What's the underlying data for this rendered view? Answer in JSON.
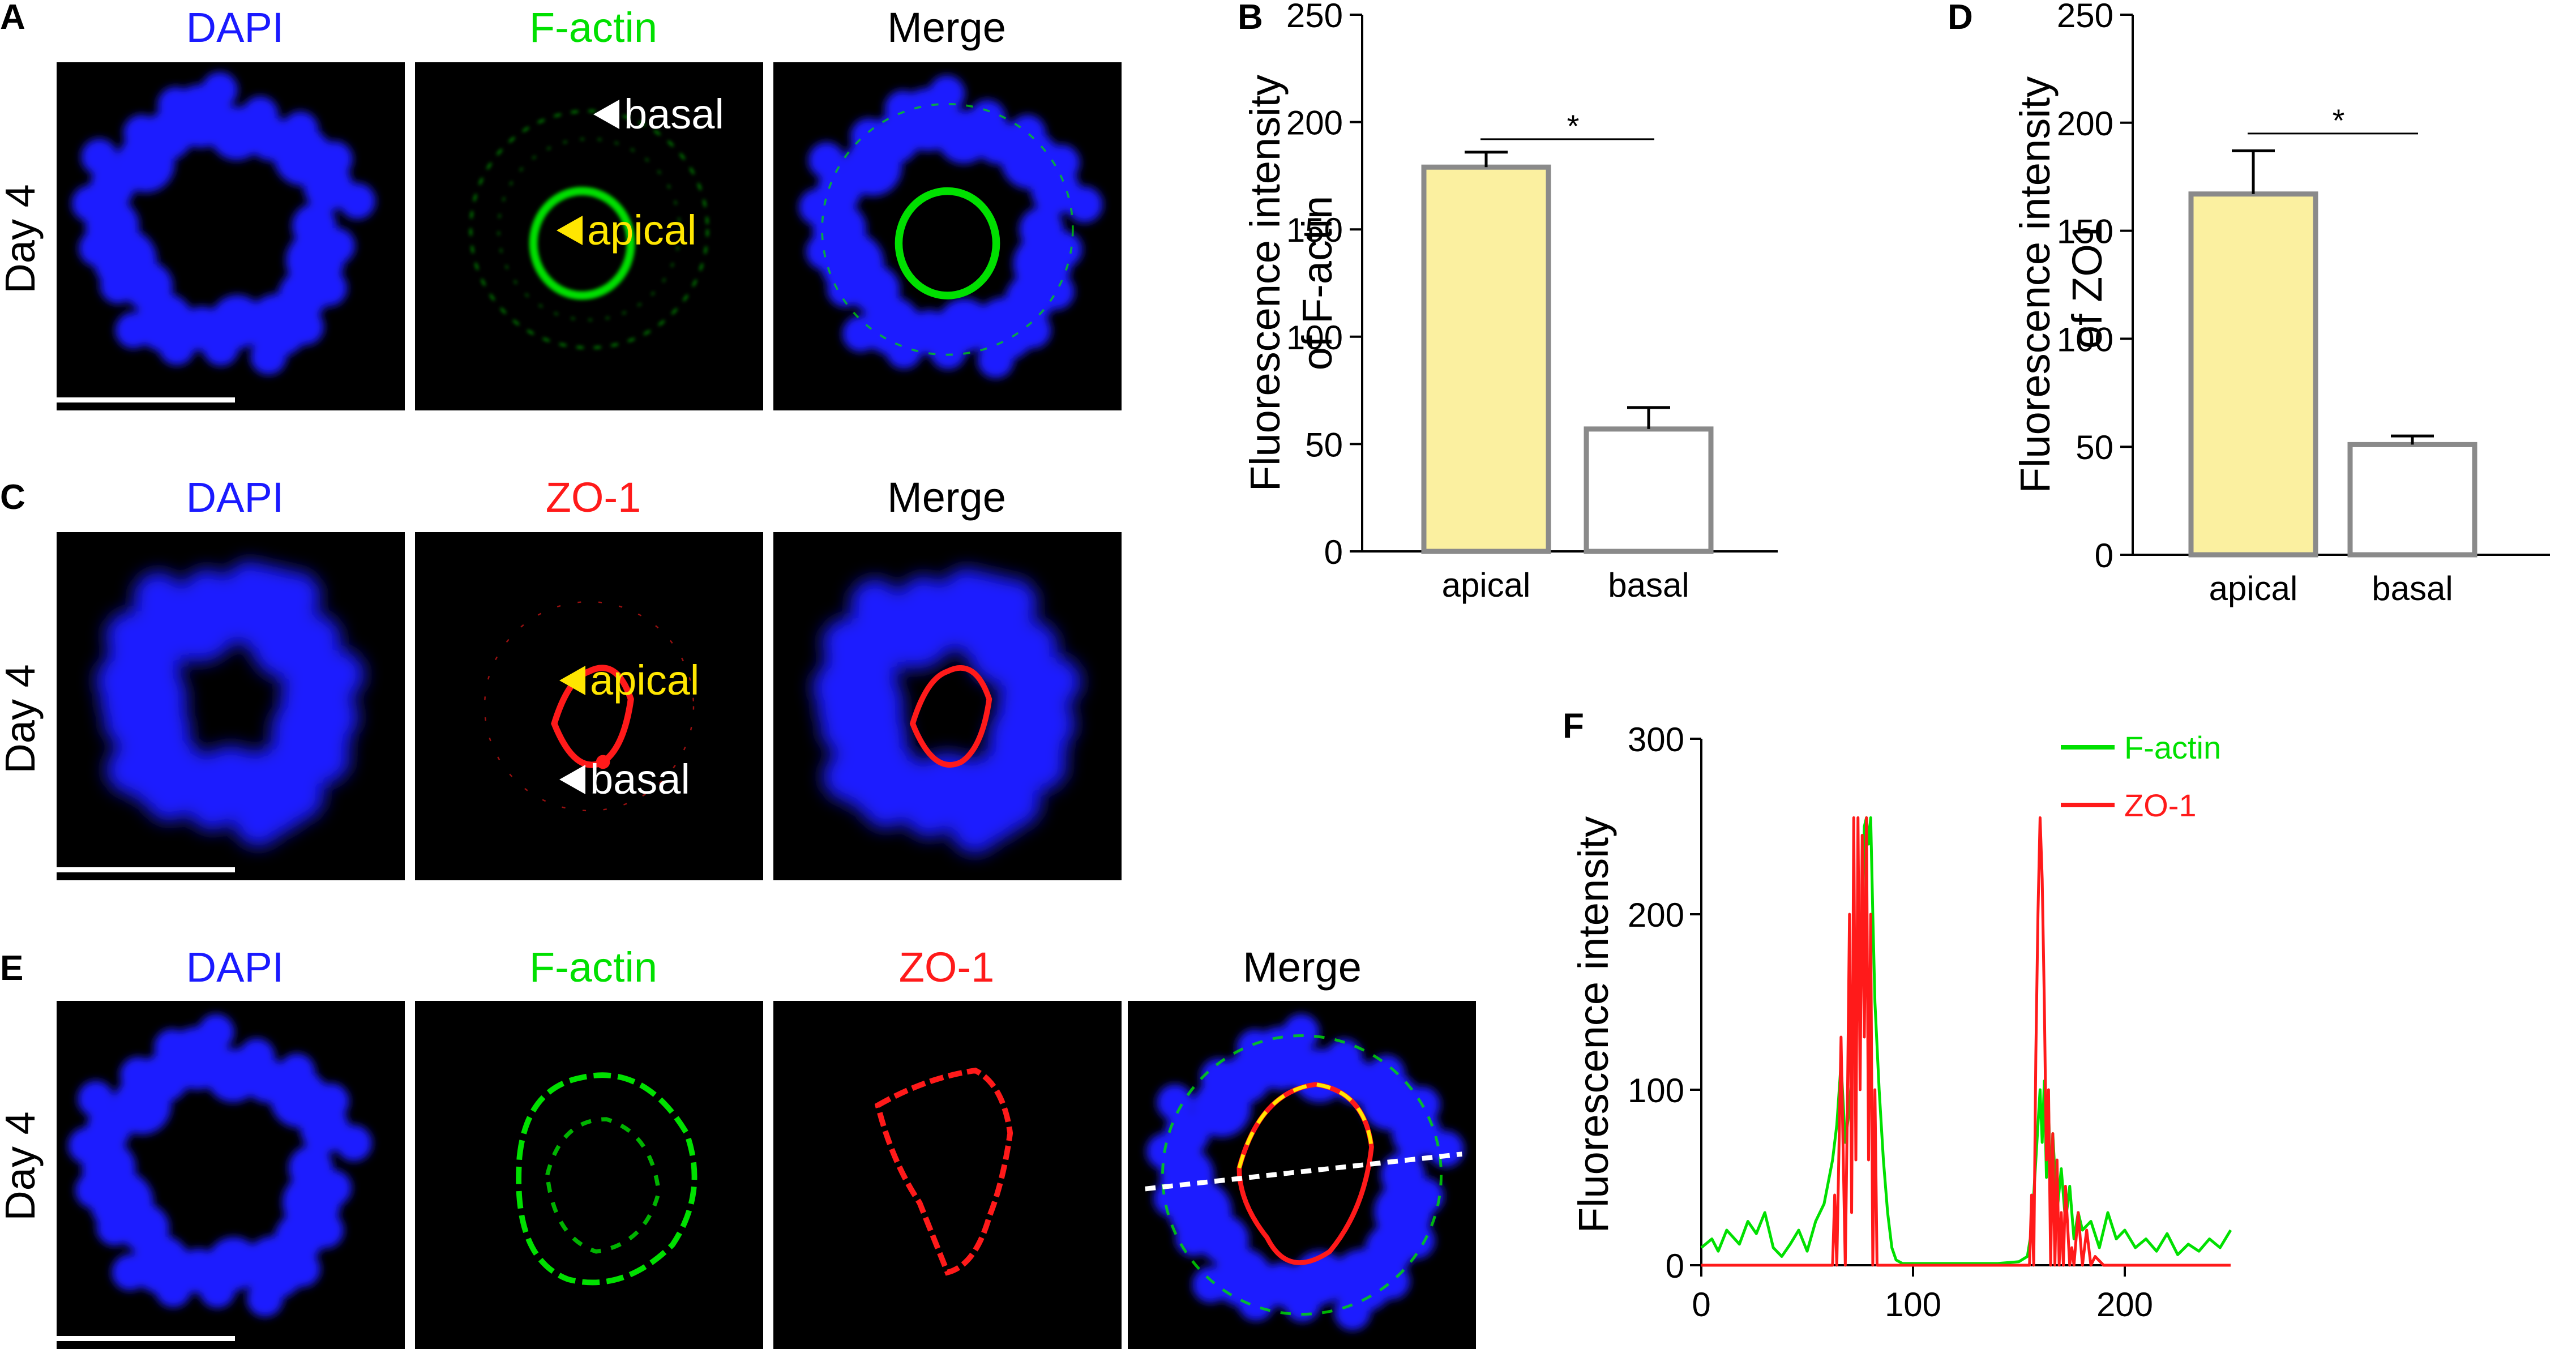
{
  "panel_letters": {
    "a": "A",
    "b": "B",
    "c": "C",
    "d": "D",
    "e": "E",
    "f": "F"
  },
  "channels": {
    "dapi": "DAPI",
    "factin": "F-actin",
    "zo1": "ZO-1",
    "merge": "Merge"
  },
  "row_label": "Day 4",
  "annotations": {
    "basal": "basal",
    "apical": "apical"
  },
  "colors": {
    "dapi": "#1a1aff",
    "factin": "#00e000",
    "zo1": "#ff1a1a",
    "apical_arrow": "#ffe600",
    "basal_arrow": "#ffffff",
    "bar_apical_fill": "#fbf0a0",
    "bar_basal_fill": "#ffffff",
    "bar_stroke": "#8a8a8a"
  },
  "chart_data": [
    {
      "panel": "B",
      "type": "bar",
      "categories": [
        "apical",
        "basal"
      ],
      "values": [
        179,
        57
      ],
      "errors": [
        7,
        10
      ],
      "ylabel": [
        "Fluorescence intensity",
        "of F-actin"
      ],
      "ylim": [
        0,
        250
      ],
      "yticks": [
        "0",
        "50",
        "100",
        "150",
        "200",
        "250"
      ],
      "significance": "*"
    },
    {
      "panel": "D",
      "type": "bar",
      "categories": [
        "apical",
        "basal"
      ],
      "values": [
        167,
        51
      ],
      "errors": [
        20,
        4
      ],
      "ylabel": [
        "Fluorescence intensity",
        "of ZO1"
      ],
      "ylim": [
        0,
        250
      ],
      "yticks": [
        "0",
        "50",
        "100",
        "150",
        "200",
        "250"
      ],
      "significance": "*"
    },
    {
      "panel": "F",
      "type": "line",
      "ylabel": "Fluorescence intensity",
      "xlim": [
        0,
        250
      ],
      "ylim": [
        0,
        300
      ],
      "xticks": [
        "0",
        "100",
        "200"
      ],
      "yticks": [
        "0",
        "100",
        "200",
        "300"
      ],
      "legend": "top-right",
      "series": [
        {
          "name": "F-actin",
          "color": "#00e000",
          "x": [
            0,
            5,
            8,
            12,
            18,
            22,
            26,
            30,
            34,
            38,
            42,
            46,
            50,
            54,
            58,
            62,
            64,
            66,
            68,
            70,
            72,
            74,
            76,
            77,
            78,
            79,
            80,
            81,
            82,
            84,
            86,
            88,
            90,
            92,
            95,
            100,
            110,
            120,
            130,
            140,
            150,
            154,
            156,
            158,
            160,
            161,
            162,
            163,
            164,
            165,
            166,
            168,
            170,
            172,
            174,
            176,
            178,
            180,
            184,
            188,
            192,
            196,
            200,
            205,
            210,
            215,
            220,
            225,
            230,
            235,
            240,
            245,
            250
          ],
          "y": [
            10,
            15,
            8,
            20,
            12,
            25,
            18,
            30,
            10,
            5,
            12,
            20,
            8,
            25,
            35,
            60,
            80,
            115,
            70,
            90,
            130,
            160,
            200,
            250,
            255,
            240,
            255,
            200,
            150,
            100,
            60,
            30,
            10,
            3,
            1,
            1,
            1,
            1,
            1,
            1,
            2,
            5,
            20,
            60,
            100,
            70,
            105,
            50,
            90,
            40,
            75,
            30,
            55,
            25,
            45,
            15,
            30,
            20,
            25,
            10,
            30,
            15,
            20,
            10,
            15,
            8,
            18,
            6,
            12,
            8,
            15,
            10,
            20
          ]
        },
        {
          "name": "ZO-1",
          "color": "#ff1a1a",
          "x": [
            0,
            60,
            62,
            63,
            64,
            66,
            68,
            69,
            70,
            71,
            72,
            73,
            74,
            75,
            76,
            77,
            78,
            79,
            80,
            81,
            82,
            83,
            84,
            90,
            150,
            155,
            156,
            157,
            158,
            159,
            160,
            161,
            162,
            163,
            164,
            165,
            166,
            167,
            168,
            169,
            170,
            171,
            172,
            174,
            175,
            176,
            178,
            180,
            182,
            184,
            186,
            190,
            250
          ],
          "y": [
            0,
            0,
            0,
            40,
            0,
            130,
            0,
            90,
            200,
            30,
            255,
            60,
            255,
            100,
            245,
            130,
            255,
            60,
            200,
            0,
            100,
            0,
            0,
            0,
            0,
            0,
            40,
            0,
            120,
            200,
            255,
            220,
            150,
            60,
            100,
            0,
            75,
            0,
            60,
            0,
            30,
            0,
            45,
            0,
            10,
            0,
            30,
            0,
            20,
            0,
            5,
            0,
            0
          ]
        }
      ]
    }
  ]
}
